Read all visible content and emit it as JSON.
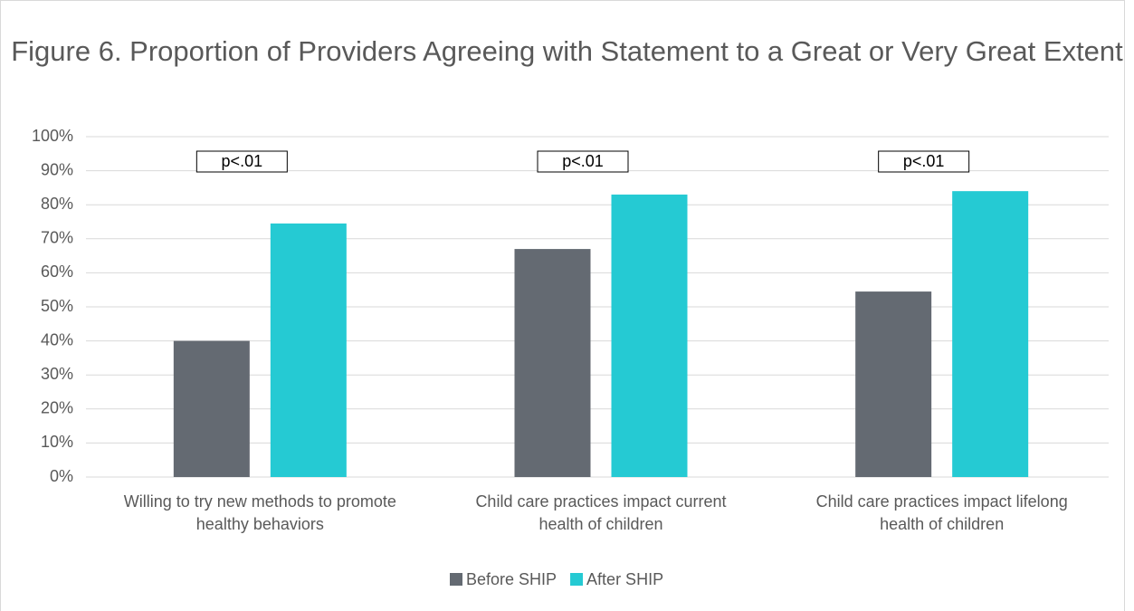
{
  "chart_data": {
    "type": "bar",
    "title": "Figure 6. Proportion of Providers Agreeing with Statement to a Great or Very Great Extent",
    "categories": [
      "Willing to try new methods to promote healthy behaviors",
      "Child care practices impact current health of children",
      "Child care practices impact lifelong health of children"
    ],
    "series": [
      {
        "name": "Before SHIP",
        "color": "#646a72",
        "values": [
          40,
          67,
          54.5
        ]
      },
      {
        "name": "After SHIP",
        "color": "#25cad3",
        "values": [
          74.5,
          83,
          84
        ]
      }
    ],
    "annotations": [
      "p<.01",
      "p<.01",
      "p<.01"
    ],
    "ylim": [
      0,
      100
    ],
    "yticks": [
      {
        "value": 0,
        "label": "0%"
      },
      {
        "value": 10,
        "label": "10%"
      },
      {
        "value": 20,
        "label": "20%"
      },
      {
        "value": 30,
        "label": "30%"
      },
      {
        "value": 40,
        "label": "40%"
      },
      {
        "value": 50,
        "label": "50%"
      },
      {
        "value": 60,
        "label": "60%"
      },
      {
        "value": 70,
        "label": "70%"
      },
      {
        "value": 80,
        "label": "80%"
      },
      {
        "value": 90,
        "label": "90%"
      },
      {
        "value": 100,
        "label": "100%"
      }
    ],
    "grid": true,
    "legend": "bottom"
  }
}
